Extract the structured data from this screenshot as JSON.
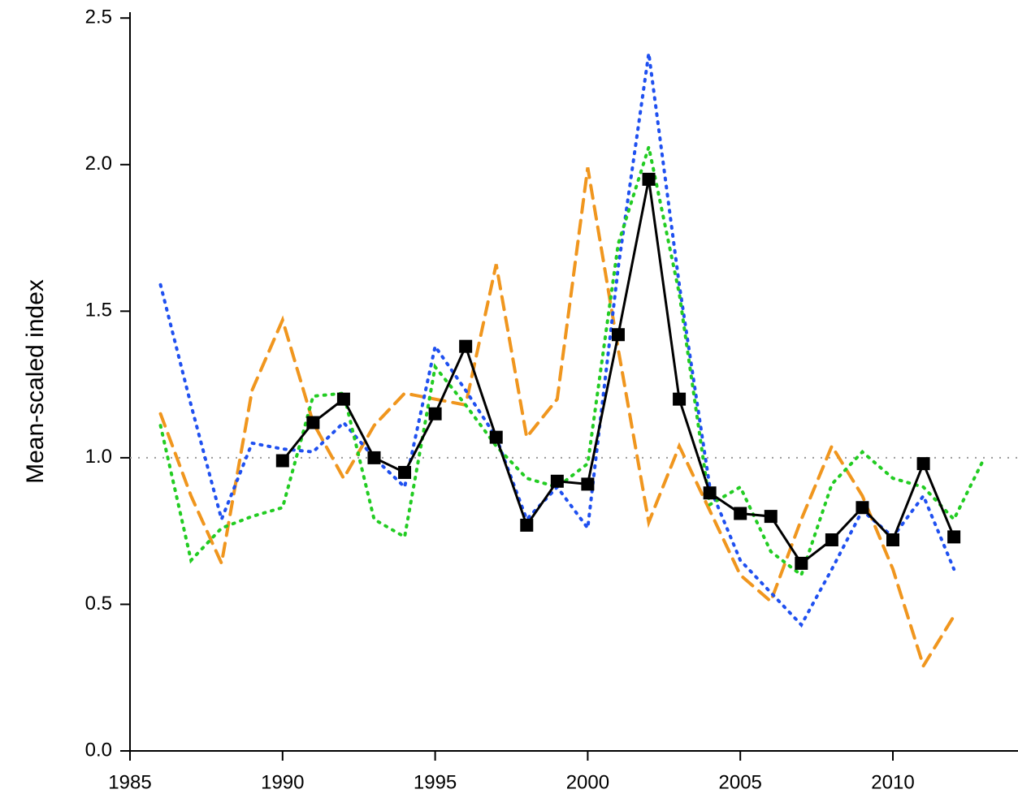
{
  "chart_data": {
    "type": "line",
    "y_label": "Mean-scaled index",
    "x": [
      1986,
      1987,
      1988,
      1989,
      1990,
      1991,
      1992,
      1993,
      1994,
      1995,
      1996,
      1997,
      1998,
      1999,
      2000,
      2001,
      2002,
      2003,
      2004,
      2005,
      2006,
      2007,
      2008,
      2009,
      2010,
      2011,
      2012,
      2013
    ],
    "series": [
      {
        "color": "#f0961e",
        "line_style": "dashed",
        "values": [
          1.15,
          0.87,
          0.64,
          1.23,
          1.47,
          1.12,
          0.93,
          1.11,
          1.22,
          1.2,
          1.18,
          1.66,
          1.07,
          1.2,
          1.99,
          1.37,
          0.78,
          1.04,
          0.82,
          0.6,
          0.51,
          0.79,
          1.04,
          0.87,
          0.62,
          0.29,
          0.46,
          null
        ]
      },
      {
        "color": "#1f50f0",
        "line_style": "dotted",
        "values": [
          1.59,
          1.18,
          0.79,
          1.05,
          1.03,
          1.02,
          1.12,
          1.0,
          0.9,
          1.38,
          1.23,
          1.07,
          0.79,
          0.9,
          0.76,
          1.65,
          2.38,
          1.59,
          0.9,
          0.65,
          0.54,
          0.43,
          0.62,
          0.82,
          0.73,
          0.87,
          0.62,
          null
        ]
      },
      {
        "color": "#22cc22",
        "line_style": "dotted",
        "values": [
          1.11,
          0.65,
          0.76,
          0.8,
          0.83,
          1.21,
          1.22,
          0.79,
          0.73,
          1.31,
          1.18,
          1.04,
          0.93,
          0.9,
          0.98,
          1.73,
          2.06,
          1.56,
          0.84,
          0.9,
          0.68,
          0.6,
          0.91,
          1.02,
          0.93,
          0.9,
          0.79,
          1.0
        ]
      },
      {
        "color": "#000000",
        "line_style": "solid",
        "marker": "square",
        "values": [
          null,
          null,
          null,
          null,
          0.99,
          1.12,
          1.2,
          1.0,
          0.95,
          1.15,
          1.38,
          1.07,
          0.77,
          0.92,
          0.91,
          1.42,
          1.95,
          1.2,
          0.88,
          0.81,
          0.8,
          0.64,
          0.72,
          0.83,
          0.72,
          0.98,
          0.73,
          null
        ]
      }
    ],
    "reference_line": {
      "value": 1,
      "color": "#999999",
      "line_style": "dotted"
    },
    "xlim": [
      1985,
      2014.1
    ],
    "xticks": [
      1985,
      1990,
      1995,
      2000,
      2005,
      2010
    ],
    "ylim": [
      0,
      2.52
    ],
    "yticks": [
      {
        "value": 0,
        "label": "0.0"
      },
      {
        "value": 0.5,
        "label": "0.5"
      },
      {
        "value": 1,
        "label": "1.0"
      },
      {
        "value": 1.5,
        "label": "1.5"
      },
      {
        "value": 2,
        "label": "2.0"
      },
      {
        "value": 2.5,
        "label": "2.5"
      }
    ]
  }
}
